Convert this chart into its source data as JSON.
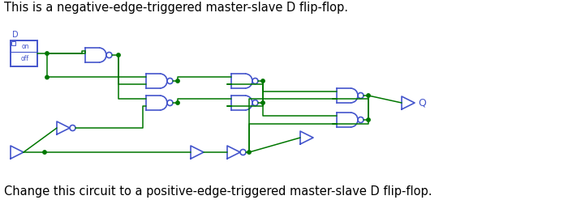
{
  "title_top": "This is a negative-edge-triggered master-slave D flip-flop.",
  "title_bottom": "Change this circuit to a positive-edge-triggered master-slave D flip-flop.",
  "title_fontsize": 10.5,
  "gate_color": "#4455cc",
  "wire_color": "#007700",
  "bg_color": "#ffffff",
  "label_D": "D",
  "label_Q": "Q",
  "label_on": "on",
  "label_off": "off"
}
